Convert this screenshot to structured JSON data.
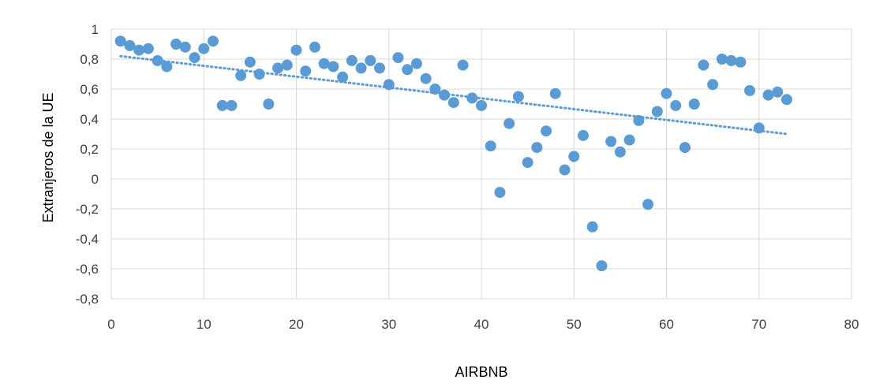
{
  "chart_data": {
    "type": "scatter",
    "title": "",
    "xlabel": "AIRBNB",
    "ylabel": "Extranjeros de la UE",
    "xlim": [
      0,
      80
    ],
    "ylim": [
      -0.8,
      1
    ],
    "x_ticks": [
      0,
      10,
      20,
      30,
      40,
      50,
      60,
      70,
      80
    ],
    "y_ticks": [
      -0.8,
      -0.6,
      -0.4,
      -0.2,
      0,
      0.2,
      0.4,
      0.6,
      0.8,
      1
    ],
    "x_tick_labels": [
      "0",
      "10",
      "20",
      "30",
      "40",
      "50",
      "60",
      "70",
      "80"
    ],
    "y_tick_labels": [
      "-0,8",
      "-0,6",
      "-0,4",
      "-0,2",
      "0",
      "0,2",
      "0,4",
      "0,6",
      "0,8",
      "1"
    ],
    "grid": true,
    "legend": "none",
    "series": [
      {
        "marker_color": "#5B9BD5",
        "points": [
          [
            1,
            0.92
          ],
          [
            2,
            0.89
          ],
          [
            3,
            0.86
          ],
          [
            4,
            0.87
          ],
          [
            5,
            0.79
          ],
          [
            6,
            0.75
          ],
          [
            7,
            0.9
          ],
          [
            8,
            0.88
          ],
          [
            9,
            0.81
          ],
          [
            10,
            0.87
          ],
          [
            11,
            0.92
          ],
          [
            12,
            0.49
          ],
          [
            13,
            0.49
          ],
          [
            14,
            0.69
          ],
          [
            15,
            0.78
          ],
          [
            16,
            0.7
          ],
          [
            17,
            0.5
          ],
          [
            18,
            0.74
          ],
          [
            19,
            0.76
          ],
          [
            20,
            0.86
          ],
          [
            21,
            0.72
          ],
          [
            22,
            0.88
          ],
          [
            23,
            0.77
          ],
          [
            24,
            0.75
          ],
          [
            25,
            0.68
          ],
          [
            26,
            0.79
          ],
          [
            27,
            0.74
          ],
          [
            28,
            0.79
          ],
          [
            29,
            0.74
          ],
          [
            30,
            0.63
          ],
          [
            31,
            0.81
          ],
          [
            32,
            0.73
          ],
          [
            33,
            0.77
          ],
          [
            34,
            0.67
          ],
          [
            35,
            0.6
          ],
          [
            36,
            0.56
          ],
          [
            37,
            0.51
          ],
          [
            38,
            0.76
          ],
          [
            39,
            0.54
          ],
          [
            40,
            0.49
          ],
          [
            41,
            0.22
          ],
          [
            42,
            -0.09
          ],
          [
            43,
            0.37
          ],
          [
            44,
            0.55
          ],
          [
            45,
            0.11
          ],
          [
            46,
            0.21
          ],
          [
            47,
            0.32
          ],
          [
            48,
            0.57
          ],
          [
            49,
            0.06
          ],
          [
            50,
            0.15
          ],
          [
            51,
            0.29
          ],
          [
            52,
            -0.32
          ],
          [
            53,
            -0.58
          ],
          [
            54,
            0.25
          ],
          [
            55,
            0.18
          ],
          [
            56,
            0.26
          ],
          [
            57,
            0.39
          ],
          [
            58,
            -0.17
          ],
          [
            59,
            0.45
          ],
          [
            60,
            0.57
          ],
          [
            61,
            0.49
          ],
          [
            62,
            0.21
          ],
          [
            63,
            0.5
          ],
          [
            64,
            0.76
          ],
          [
            65,
            0.63
          ],
          [
            66,
            0.8
          ],
          [
            67,
            0.79
          ],
          [
            68,
            0.78
          ],
          [
            69,
            0.59
          ],
          [
            70,
            0.34
          ],
          [
            71,
            0.56
          ],
          [
            72,
            0.58
          ],
          [
            73,
            0.53
          ]
        ]
      }
    ],
    "trendline": {
      "type": "linear",
      "style": "dotted",
      "color": "#5B9BD5",
      "x_range": [
        1,
        73
      ],
      "y_at_start": 0.82,
      "y_at_end": 0.3
    }
  }
}
